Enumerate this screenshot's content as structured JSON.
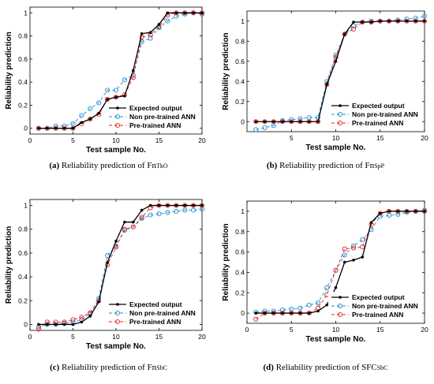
{
  "chart_data": [
    {
      "type": "line",
      "caption": {
        "label": "(a)",
        "text": "Reliability prediction of Fn",
        "sub": "TkO"
      },
      "xlabel": "Test sample No.",
      "ylabel": "Reliability prediction",
      "xlim": [
        0,
        20
      ],
      "ylim": [
        -0.05,
        1.05
      ],
      "xticks": [
        0,
        5,
        10,
        15,
        20
      ],
      "yticks": [
        0,
        0.2,
        0.4,
        0.6,
        0.8,
        1
      ],
      "ytick_labels": [
        "0",
        "0.2",
        "0.4",
        "0.6",
        "0.8",
        "1"
      ],
      "x": [
        1,
        2,
        3,
        4,
        5,
        6,
        7,
        8,
        9,
        10,
        11,
        12,
        13,
        14,
        15,
        16,
        17,
        18,
        19,
        20
      ],
      "series": [
        {
          "name": "Expected output",
          "color": "#000000",
          "dash": "",
          "marker": "dot",
          "values": [
            0,
            0,
            0,
            0,
            0,
            0.05,
            0.08,
            0.13,
            0.25,
            0.27,
            0.28,
            0.5,
            0.82,
            0.83,
            0.9,
            1,
            1,
            1,
            1,
            1
          ]
        },
        {
          "name": "Non pre-trained ANN",
          "color": "#1f8fd6",
          "dash": "4,3",
          "marker": "circle",
          "values": [
            0,
            0,
            0.02,
            0.02,
            0.04,
            0.11,
            0.17,
            0.22,
            0.33,
            0.33,
            0.42,
            0.46,
            0.75,
            0.78,
            0.87,
            0.93,
            0.97,
            0.99,
            1,
            0.99
          ]
        },
        {
          "name": "Pre-trained ANN",
          "color": "#e8251f",
          "dash": "4,3",
          "marker": "circle",
          "values": [
            0,
            0,
            0,
            0,
            0,
            0.04,
            0.08,
            0.12,
            0.25,
            0.27,
            0.29,
            0.44,
            0.79,
            0.81,
            0.88,
            0.98,
            1,
            1,
            1,
            1
          ]
        }
      ]
    },
    {
      "type": "line",
      "caption": {
        "label": "(b)",
        "text": "Reliability prediction of Fn",
        "sub": "SpP"
      },
      "xlabel": "Test sample No.",
      "ylabel": "Reliability prediction",
      "xlim": [
        0,
        20
      ],
      "ylim": [
        -0.1,
        1.1
      ],
      "xticks": [
        5,
        10,
        15,
        20
      ],
      "yticks": [
        0,
        0.2,
        0.4,
        0.6,
        0.8,
        1
      ],
      "ytick_labels": [
        "0",
        "0.2",
        "0.4",
        "0.6",
        "0.8",
        "1"
      ],
      "x": [
        1,
        2,
        3,
        4,
        5,
        6,
        7,
        8,
        9,
        10,
        11,
        12,
        13,
        14,
        15,
        16,
        17,
        18,
        19,
        20
      ],
      "series": [
        {
          "name": "Expected output",
          "color": "#000000",
          "dash": "",
          "marker": "dot",
          "values": [
            0,
            0,
            0,
            0,
            0,
            0,
            0,
            0,
            0.37,
            0.6,
            0.87,
            0.99,
            0.99,
            0.99,
            1,
            1,
            1,
            1,
            1,
            1
          ]
        },
        {
          "name": "Non pre-trained ANN",
          "color": "#1f8fd6",
          "dash": "4,3",
          "marker": "circle",
          "values": [
            -0.08,
            -0.06,
            -0.04,
            0.01,
            0.02,
            0.03,
            0.04,
            0.04,
            0.4,
            0.66,
            0.87,
            0.95,
            0.99,
            1,
            1,
            1,
            1.01,
            1.02,
            1.03,
            1.05
          ]
        },
        {
          "name": "Pre-trained ANN",
          "color": "#e8251f",
          "dash": "4,3",
          "marker": "circle",
          "values": [
            0,
            0,
            0,
            0,
            0,
            0,
            0,
            0,
            0.37,
            0.64,
            0.87,
            0.92,
            0.99,
            0.99,
            1,
            1,
            1,
            1,
            1,
            1
          ]
        }
      ]
    },
    {
      "type": "line",
      "caption": {
        "label": "(c)",
        "text": "Reliability prediction of Fn",
        "sub": "SbC"
      },
      "xlabel": "Test sample No.",
      "ylabel": "Reliability prediction",
      "xlim": [
        0,
        20
      ],
      "ylim": [
        -0.05,
        1.05
      ],
      "xticks": [
        0,
        5,
        10,
        15,
        20
      ],
      "yticks": [
        0,
        0.2,
        0.4,
        0.6,
        0.8,
        1
      ],
      "ytick_labels": [
        "0",
        "0.2",
        "0.4",
        "0.6",
        "0.8",
        "1"
      ],
      "x": [
        1,
        2,
        3,
        4,
        5,
        6,
        7,
        8,
        9,
        10,
        11,
        12,
        13,
        14,
        15,
        16,
        17,
        18,
        19,
        20
      ],
      "series": [
        {
          "name": "Expected output",
          "color": "#000000",
          "dash": "",
          "marker": "dot",
          "values": [
            0,
            0,
            0,
            0,
            0,
            0.02,
            0.07,
            0.19,
            0.52,
            0.7,
            0.86,
            0.86,
            0.96,
            1,
            1,
            1,
            1,
            1,
            1,
            1
          ]
        },
        {
          "name": "Non pre-trained ANN",
          "color": "#1f8fd6",
          "dash": "4,3",
          "marker": "circle",
          "values": [
            -0.02,
            0,
            0,
            0.01,
            0.02,
            0.04,
            0.09,
            0.22,
            0.58,
            0.66,
            0.79,
            0.82,
            0.89,
            0.92,
            0.93,
            0.94,
            0.95,
            0.96,
            0.96,
            0.97
          ]
        },
        {
          "name": "Pre-trained ANN",
          "color": "#e8251f",
          "dash": "4,3",
          "marker": "circle",
          "values": [
            -0.04,
            0.02,
            0.02,
            0.02,
            0.04,
            0.06,
            0.1,
            0.2,
            0.5,
            0.65,
            0.8,
            0.82,
            0.9,
            0.98,
            1,
            1,
            1,
            1,
            1,
            1
          ]
        }
      ]
    },
    {
      "type": "line",
      "caption": {
        "label": "(d)",
        "text": "Reliability prediction of SFC",
        "sub": "SbC"
      },
      "xlabel": "Test sample No.",
      "ylabel": "Reliability prediction",
      "xlim": [
        0,
        20
      ],
      "ylim": [
        -0.1,
        1.1
      ],
      "xticks": [
        0,
        5,
        10,
        15,
        20
      ],
      "yticks": [
        0,
        0.2,
        0.4,
        0.6,
        0.8,
        1
      ],
      "ytick_labels": [
        "0",
        "0.2",
        "0.4",
        "0.6",
        "0.8",
        "1"
      ],
      "x": [
        1,
        2,
        3,
        4,
        5,
        6,
        7,
        8,
        9,
        10,
        11,
        12,
        13,
        14,
        15,
        16,
        17,
        18,
        19,
        20
      ],
      "series": [
        {
          "name": "Expected output",
          "color": "#000000",
          "dash": "",
          "marker": "dot",
          "values": [
            0,
            0,
            0,
            0,
            0,
            0,
            0,
            0.02,
            0.08,
            0.25,
            0.5,
            0.52,
            0.55,
            0.89,
            0.98,
            1,
            1,
            1,
            1,
            1
          ]
        },
        {
          "name": "Non pre-trained ANN",
          "color": "#1f8fd6",
          "dash": "4,3",
          "marker": "circle",
          "values": [
            0.01,
            0.02,
            0.02,
            0.03,
            0.04,
            0.05,
            0.08,
            0.1,
            0.25,
            0.42,
            0.57,
            0.66,
            0.72,
            0.82,
            0.95,
            0.96,
            0.97,
            0.99,
            1,
            1.01
          ]
        },
        {
          "name": "Pre-trained ANN",
          "color": "#e8251f",
          "dash": "4,3",
          "marker": "circle",
          "values": [
            -0.06,
            0,
            0,
            0,
            0,
            0,
            0,
            0.05,
            0.18,
            0.42,
            0.63,
            0.64,
            0.65,
            0.87,
            0.98,
            1,
            1,
            1,
            1,
            1
          ]
        }
      ]
    }
  ]
}
